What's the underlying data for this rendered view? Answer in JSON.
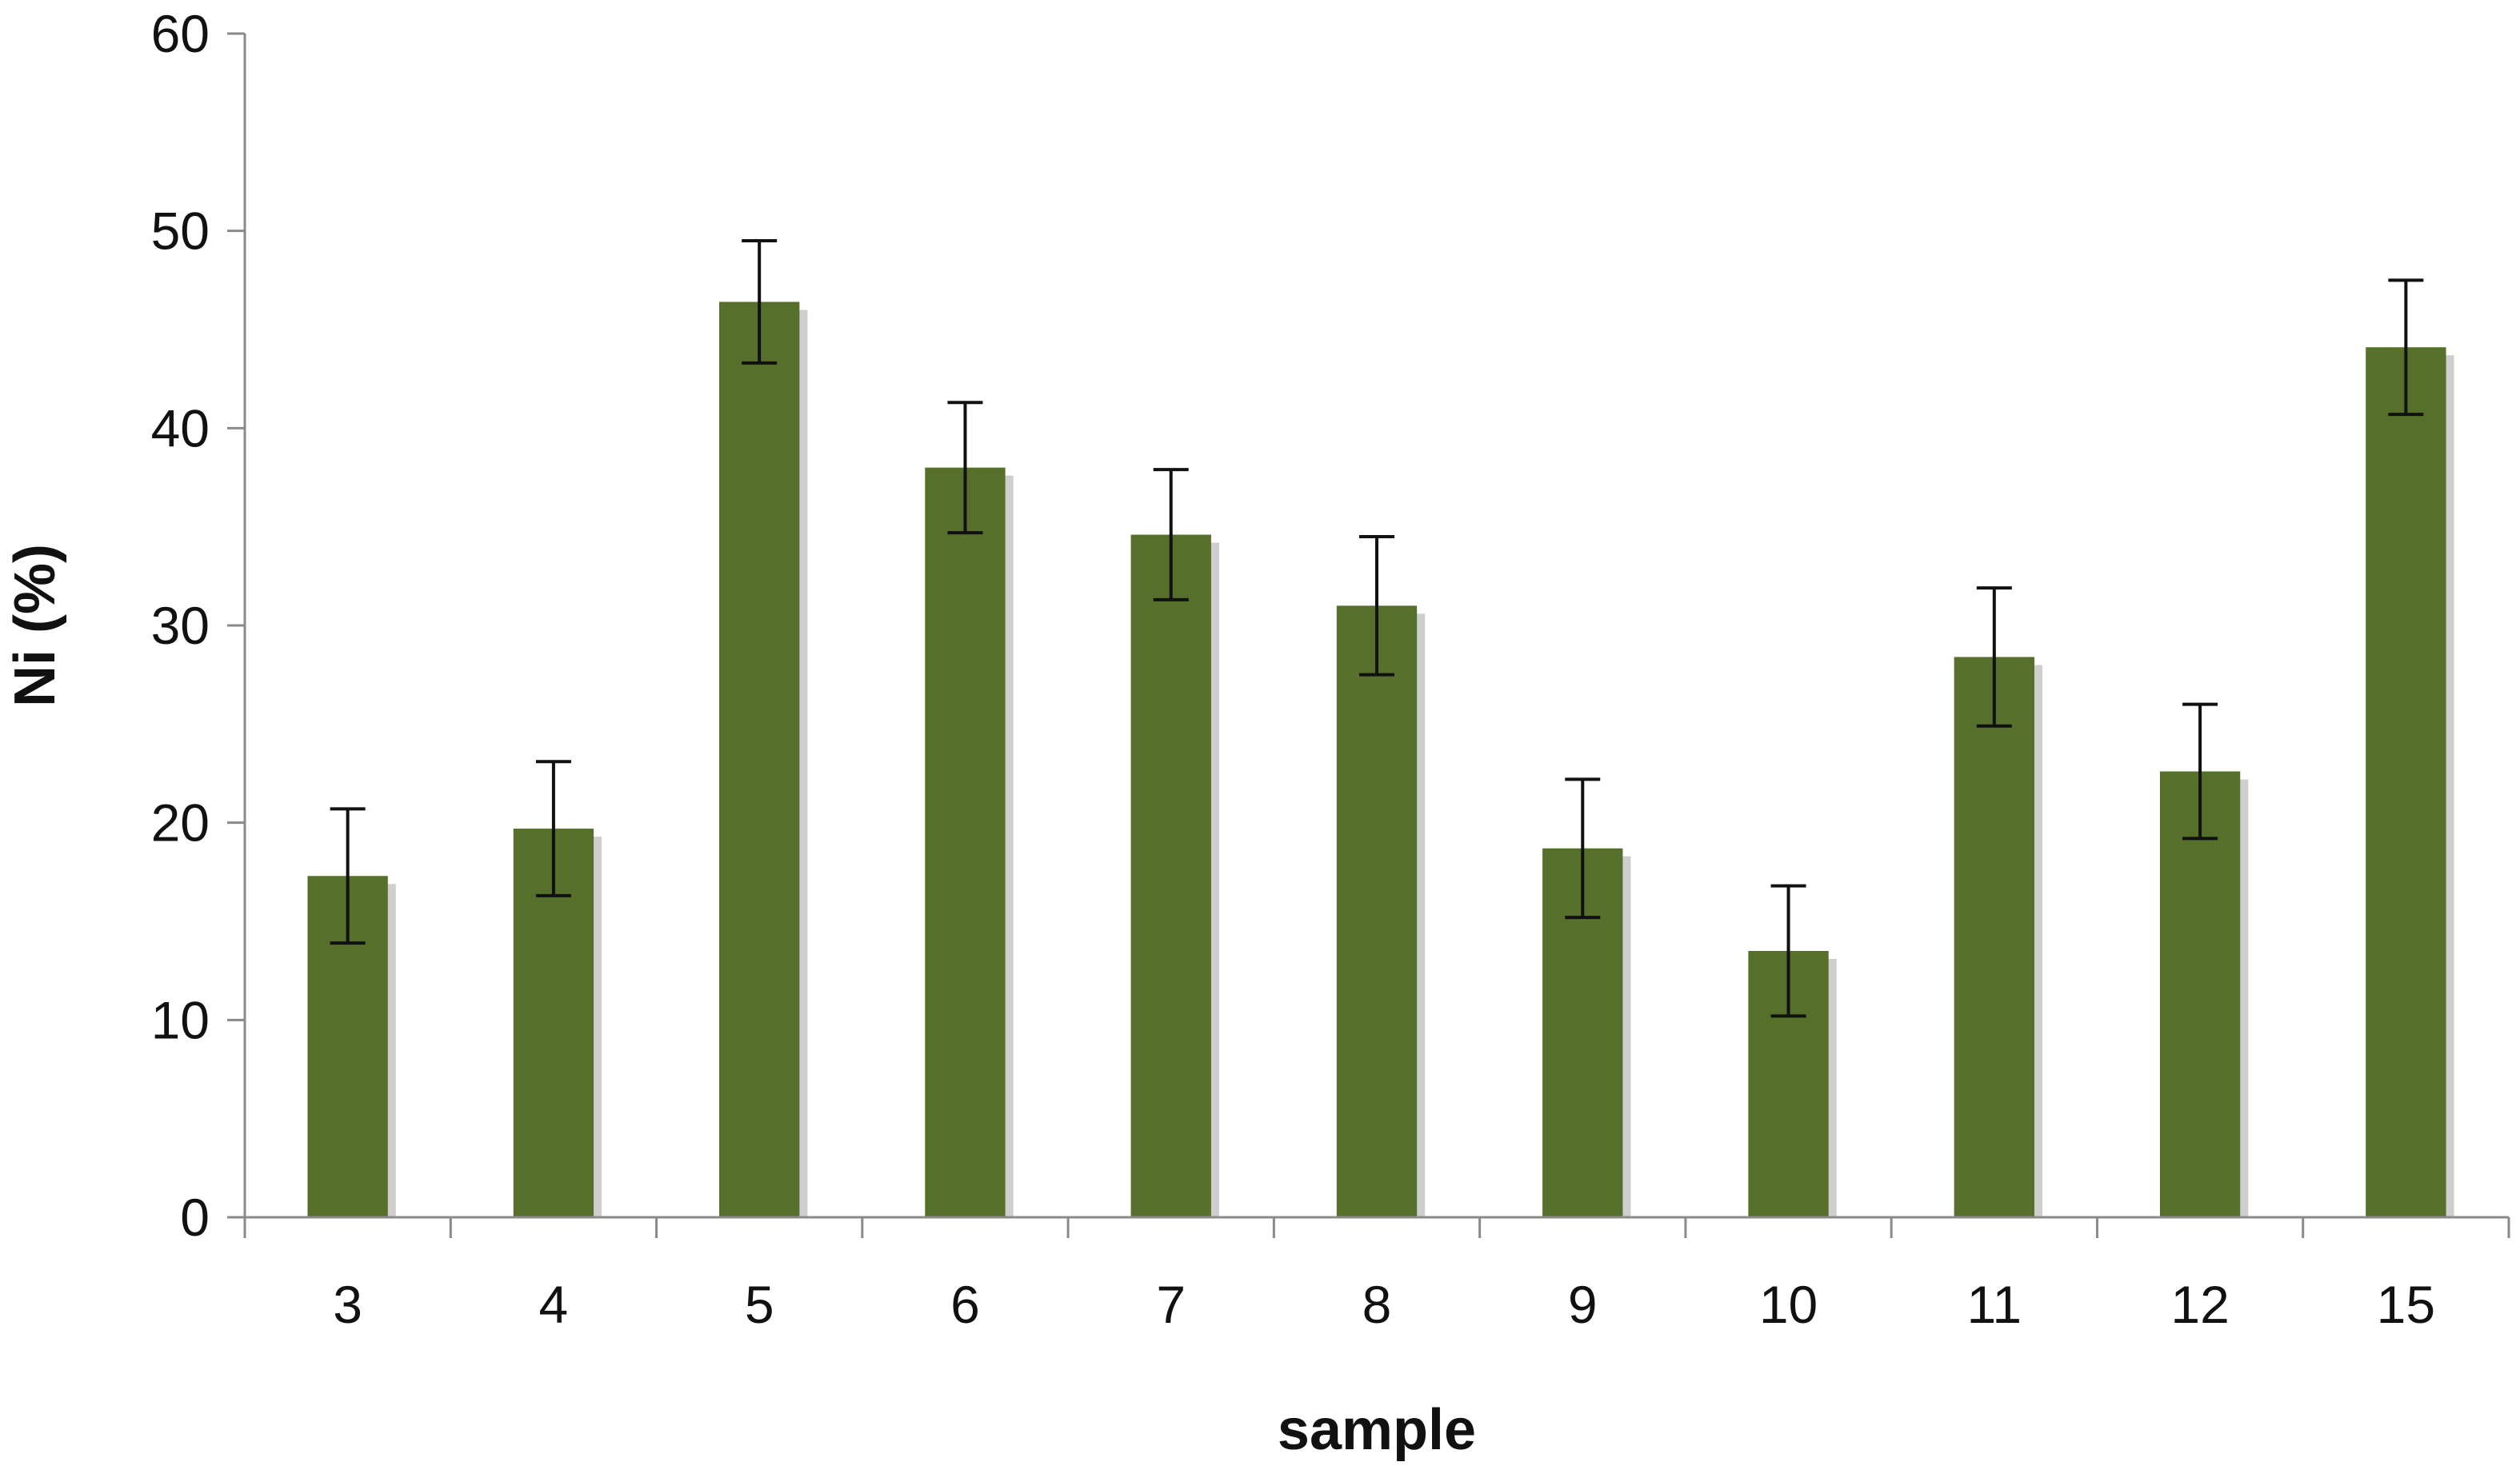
{
  "chart_data": {
    "type": "bar",
    "xlabel": "sample",
    "ylabel": "Ni (%)",
    "ylim": [
      0,
      60
    ],
    "yticks": [
      "0",
      "10",
      "20",
      "30",
      "40",
      "50",
      "60"
    ],
    "categories": [
      "3",
      "4",
      "5",
      "6",
      "7",
      "8",
      "9",
      "10",
      "11",
      "12",
      "15"
    ],
    "series": [
      {
        "values": [
          17.3,
          19.7,
          46.4,
          38.0,
          34.6,
          31.0,
          18.7,
          13.5,
          28.4,
          22.6,
          44.1
        ],
        "error": [
          3.4,
          3.4,
          3.1,
          3.3,
          3.3,
          3.5,
          3.5,
          3.3,
          3.5,
          3.4,
          3.4
        ]
      }
    ],
    "grid": false,
    "legend": "none",
    "colors": {
      "bar": "#566f2a",
      "bar_shadow": "#b9b9b9",
      "axis": "#8a8a8a",
      "text": "#111111"
    }
  }
}
